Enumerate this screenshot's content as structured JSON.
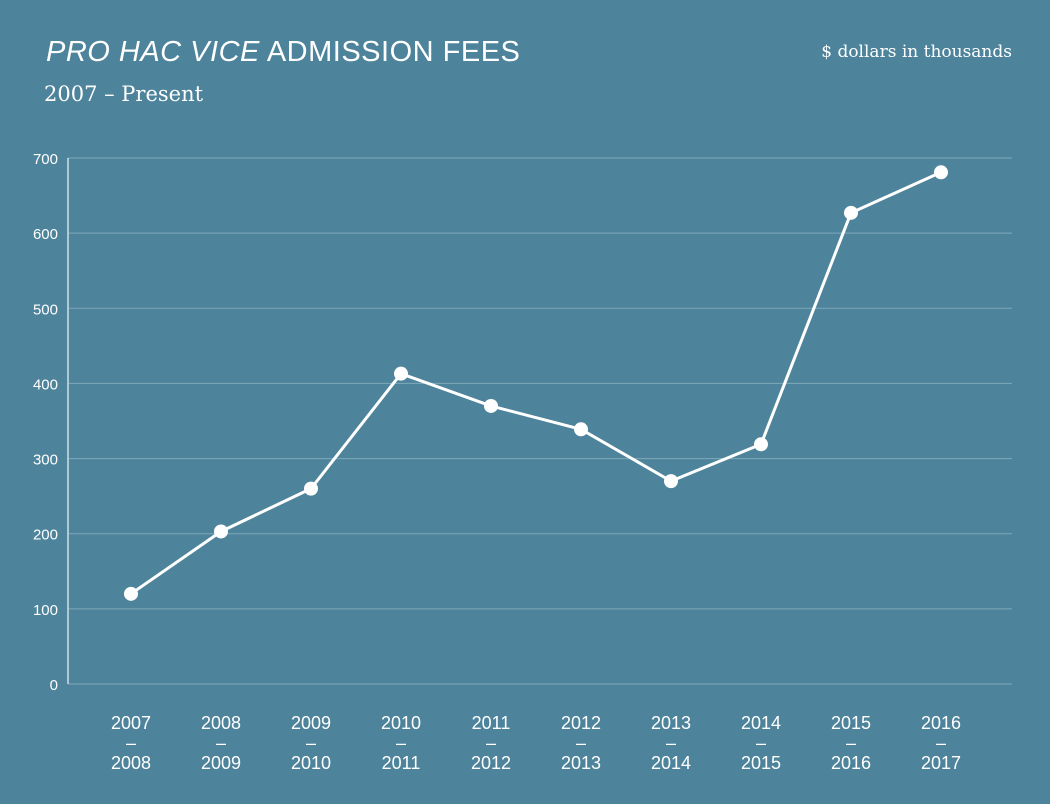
{
  "chart_data": {
    "type": "line",
    "title_italic": "PRO HAC VICE",
    "title_rest": " ADMISSION FEES",
    "subtitle": "2007 – Present",
    "unit_note": "$ dollars in thousands",
    "categories": [
      [
        "2007",
        "–",
        "2008"
      ],
      [
        "2008",
        "–",
        "2009"
      ],
      [
        "2009",
        "–",
        "2010"
      ],
      [
        "2010",
        "–",
        "2011"
      ],
      [
        "2011",
        "–",
        "2012"
      ],
      [
        "2012",
        "–",
        "2013"
      ],
      [
        "2013",
        "–",
        "2014"
      ],
      [
        "2014",
        "–",
        "2015"
      ],
      [
        "2015",
        "–",
        "2016"
      ],
      [
        "2016",
        "–",
        "2017"
      ]
    ],
    "values": [
      120,
      203,
      260,
      413,
      370,
      339,
      270,
      319,
      627,
      681
    ],
    "ylim": [
      0,
      700
    ],
    "yticks": [
      0,
      100,
      200,
      300,
      400,
      500,
      600,
      700
    ],
    "grid": true,
    "colors": {
      "background": "#4d839b",
      "line": "#ffffff",
      "grid": "#7fa8ba"
    }
  }
}
